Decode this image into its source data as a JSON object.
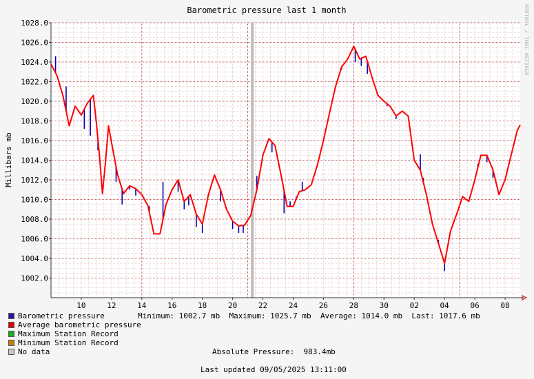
{
  "chart_data": {
    "type": "line",
    "title": "Barometric pressure last 1 month",
    "ylabel": "Millibars   mb",
    "ylim": [
      1000,
      1028
    ],
    "yticks": [
      "1002.0",
      "1004.0",
      "1006.0",
      "1008.0",
      "1010.0",
      "1012.0",
      "1014.0",
      "1016.0",
      "1018.0",
      "1020.0",
      "1022.0",
      "1024.0",
      "1026.0",
      "1028.0"
    ],
    "xticks": [
      "10",
      "12",
      "14",
      "16",
      "18",
      "20",
      "22",
      "24",
      "26",
      "28",
      "30",
      "02",
      "04",
      "06",
      "08"
    ],
    "xlim_days": [
      8,
      39
    ],
    "grid": true,
    "nodata_band_day": [
      21.2,
      21.4
    ],
    "series": [
      {
        "name": "Average barometric pressure",
        "color": "#ff0000",
        "x": [
          8.0,
          8.4,
          8.8,
          9.2,
          9.6,
          10.0,
          10.4,
          10.8,
          11.0,
          11.2,
          11.4,
          11.6,
          11.8,
          12.0,
          12.4,
          12.8,
          13.2,
          13.6,
          14.0,
          14.4,
          14.8,
          15.2,
          15.6,
          16.0,
          16.4,
          16.8,
          17.2,
          17.6,
          18.0,
          18.4,
          18.8,
          19.2,
          19.6,
          20.0,
          20.4,
          20.8,
          21.2,
          21.6,
          22.0,
          22.4,
          22.8,
          23.2,
          23.6,
          24.0,
          24.4,
          24.8,
          25.2,
          25.6,
          26.0,
          26.4,
          26.8,
          27.2,
          27.6,
          28.0,
          28.4,
          28.8,
          29.2,
          29.6,
          30.0,
          30.4,
          30.8,
          31.2,
          31.6,
          32.0,
          32.4,
          32.8,
          33.2,
          33.6,
          34.0,
          34.4,
          34.8,
          35.2,
          35.6,
          36.0,
          36.4,
          36.8,
          37.2,
          37.6,
          38.0,
          38.4,
          38.8,
          39.0
        ],
        "values": [
          1023.8,
          1022.6,
          1020.5,
          1017.5,
          1019.5,
          1018.6,
          1019.8,
          1020.6,
          1017.8,
          1014.5,
          1010.6,
          1013.8,
          1017.5,
          1015.8,
          1012.5,
          1010.6,
          1011.4,
          1011.1,
          1010.5,
          1009.4,
          1006.5,
          1006.5,
          1009.5,
          1011.0,
          1012.0,
          1009.8,
          1010.5,
          1008.5,
          1007.5,
          1010.5,
          1012.5,
          1011.0,
          1009.0,
          1007.8,
          1007.3,
          1007.4,
          1008.4,
          1011.0,
          1014.5,
          1016.2,
          1015.5,
          1012.5,
          1009.3,
          1009.3,
          1010.8,
          1011.0,
          1011.5,
          1013.5,
          1016.0,
          1018.8,
          1021.5,
          1023.5,
          1024.3,
          1025.6,
          1024.3,
          1024.6,
          1022.5,
          1020.6,
          1020.0,
          1019.5,
          1018.5,
          1019.0,
          1018.5,
          1014.0,
          1013.0,
          1010.5,
          1007.5,
          1005.5,
          1003.5,
          1006.8,
          1008.5,
          1010.3,
          1009.8,
          1012.0,
          1014.5,
          1014.5,
          1013.0,
          1010.5,
          1012.0,
          1014.5,
          1017.0,
          1017.6
        ]
      },
      {
        "name": "Barometric pressure",
        "color": "#0000aa",
        "x": [
          8.3,
          9.0,
          10.2,
          10.6,
          11.1,
          12.3,
          12.7,
          13.2,
          13.6,
          14.5,
          15.4,
          16.4,
          16.8,
          17.1,
          17.6,
          18.0,
          19.2,
          20.0,
          20.4,
          20.7,
          21.6,
          22.6,
          23.4,
          23.8,
          24.2,
          24.6,
          27.2,
          28.1,
          28.5,
          28.9,
          30.2,
          30.8,
          32.4,
          32.6,
          33.6,
          34.0,
          34.3,
          36.2,
          36.8,
          37.2
        ],
        "values": [
          1024.6,
          1021.5,
          1017.2,
          1016.5,
          1015.0,
          1011.8,
          1009.5,
          1011.0,
          1010.4,
          1009.3,
          1011.8,
          1010.8,
          1009.0,
          1009.4,
          1007.2,
          1006.6,
          1009.8,
          1007.0,
          1006.6,
          1006.6,
          1012.4,
          1014.8,
          1008.6,
          1009.8,
          1010.3,
          1011.8,
          1023.2,
          1024.0,
          1023.6,
          1022.8,
          1019.5,
          1018.2,
          1014.6,
          1012.2,
          1005.9,
          1002.7,
          1006.2,
          1013.6,
          1013.8,
          1012.2
        ]
      }
    ],
    "stats": {
      "minimum": "Minimum: 1002.7 mb",
      "maximum": "Maximum: 1025.7 mb",
      "average": "Average: 1014.0 mb",
      "last": "Last: 1017.6 mb"
    }
  },
  "legend": [
    {
      "label": "Barometric pressure",
      "color": "#2a1a9a"
    },
    {
      "label": "Average barometric pressure",
      "color": "#e00000"
    },
    {
      "label": "Maximum Station Record",
      "color": "#22aa22"
    },
    {
      "label": "Minimum Station Record",
      "color": "#c08000"
    },
    {
      "label": "No data",
      "color": "#c8c8c8"
    }
  ],
  "absolute_pressure": "Absolute Pressure:  983.4mb",
  "last_updated": "Last updated 09/05/2025 13:11:00",
  "credit": "RRDTOOL / TOBI OETIKER"
}
